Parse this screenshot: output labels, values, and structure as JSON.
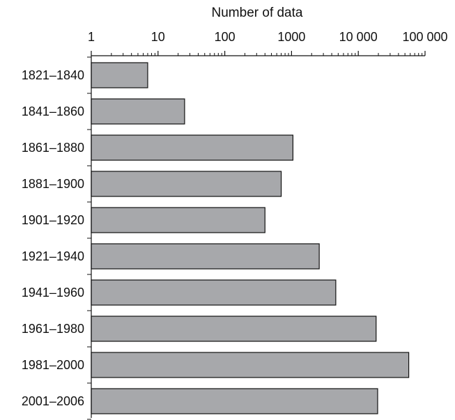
{
  "chart_data": {
    "type": "bar",
    "orientation": "horizontal",
    "x_scale": "log",
    "xlabel": "Number of data",
    "xlim": [
      1,
      100000
    ],
    "x_ticks": [
      1,
      10,
      100,
      1000,
      10000,
      100000
    ],
    "x_tick_labels": [
      "1",
      "10",
      "100",
      "1000",
      "10 000",
      "100 000"
    ],
    "x_axis_position": "top",
    "grid": false,
    "categories": [
      "1821–1840",
      "1841–1860",
      "1861–1880",
      "1881–1900",
      "1901–1920",
      "1921–1940",
      "1941–1960",
      "1961–1980",
      "1981–2000",
      "2001–2006"
    ],
    "values": [
      7,
      25,
      1050,
      700,
      400,
      2600,
      4600,
      18500,
      57000,
      19500
    ],
    "bar_color": "#a7a8ab",
    "edge_color": "#111111"
  }
}
